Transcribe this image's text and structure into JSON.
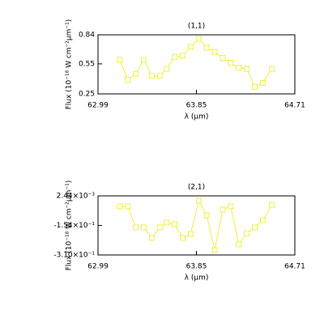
{
  "chart_data": [
    {
      "type": "line",
      "title": "(1,1)",
      "x_label": "λ (μm)",
      "y_label": "Flux (10⁻¹⁸ W cm⁻²μm⁻¹)",
      "color": "#f0f040",
      "marker": "square",
      "x": [
        63.18,
        63.25,
        63.32,
        63.39,
        63.46,
        63.53,
        63.59,
        63.66,
        63.73,
        63.8,
        63.87,
        63.94,
        64.01,
        64.08,
        64.15,
        64.22,
        64.29,
        64.36,
        64.43,
        64.51
      ],
      "values": [
        0.59,
        0.39,
        0.45,
        0.59,
        0.43,
        0.43,
        0.5,
        0.62,
        0.63,
        0.72,
        0.8,
        0.71,
        0.67,
        0.61,
        0.56,
        0.51,
        0.5,
        0.32,
        0.36,
        0.5
      ],
      "xlim": [
        62.99,
        64.71
      ],
      "xticks": [
        62.99,
        63.85,
        64.71
      ],
      "ylim": [
        0.25,
        0.84
      ],
      "yticks": [
        0.25,
        0.55,
        0.84
      ]
    },
    {
      "type": "line",
      "title": "(2,1)",
      "x_label": "λ (μm)",
      "y_label": "Flux (10⁻¹⁸ W cm⁻²μm⁻¹)",
      "color": "#f0f040",
      "marker": "square",
      "x": [
        63.18,
        63.25,
        63.32,
        63.39,
        63.46,
        63.53,
        63.59,
        63.66,
        63.73,
        63.8,
        63.87,
        63.94,
        64.01,
        64.08,
        64.15,
        64.22,
        64.29,
        64.36,
        64.43,
        64.51
      ],
      "values": [
        -0.053,
        -0.053,
        -0.164,
        -0.164,
        -0.22,
        -0.164,
        -0.139,
        -0.147,
        -0.22,
        -0.199,
        -0.023,
        -0.1,
        -0.284,
        -0.07,
        -0.053,
        -0.254,
        -0.195,
        -0.164,
        -0.126,
        -0.045
      ],
      "xlim": [
        62.99,
        64.71
      ],
      "xticks": [
        62.99,
        63.85,
        64.71
      ],
      "ylim": [
        -0.31,
        0.00244
      ],
      "yticks": [
        {
          "value": -0.31,
          "label": "-3.10×10⁻¹"
        },
        {
          "value": -0.154,
          "label": "-1.54×10⁻¹"
        },
        {
          "value": 0.00244,
          "label": "2.44×10⁻³"
        }
      ]
    }
  ]
}
